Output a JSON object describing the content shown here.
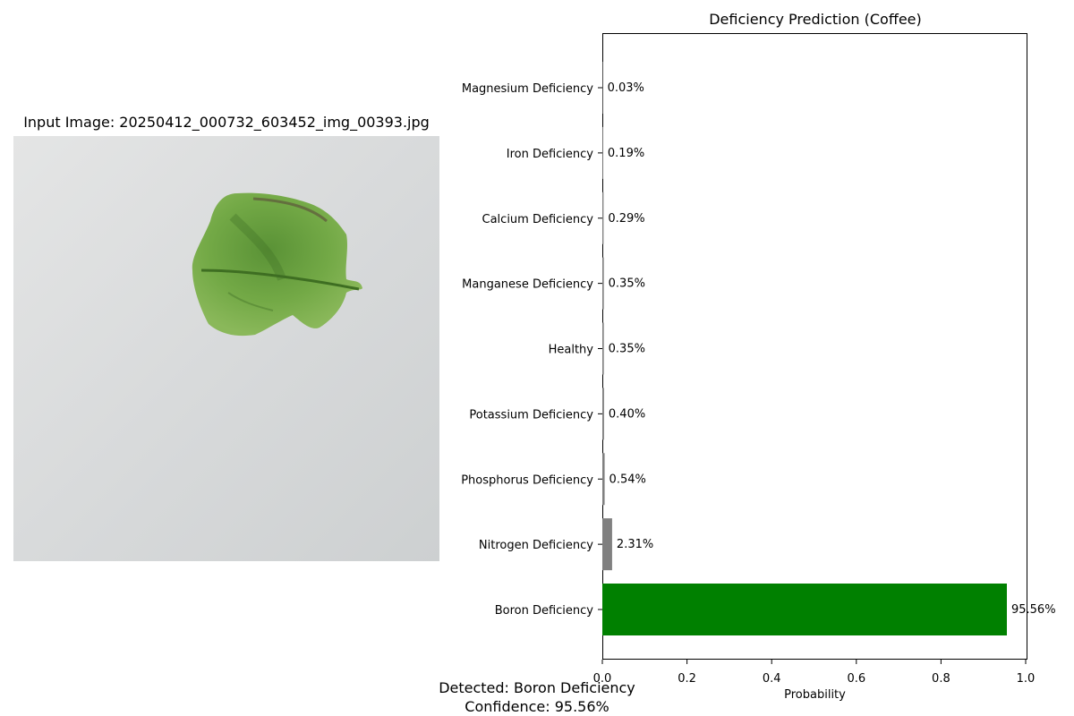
{
  "left_panel": {
    "title": "Input Image: 20250412_000732_603452_img_00393.jpg",
    "image_content": "green leaf on light grey background"
  },
  "chart_data": {
    "type": "bar",
    "orientation": "horizontal",
    "title": "Deficiency Prediction (Coffee)",
    "xlabel": "Probability",
    "ylabel": "",
    "xlim": [
      0,
      1
    ],
    "xticks": [
      0.0,
      0.2,
      0.4,
      0.6,
      0.8,
      1.0
    ],
    "xtick_labels": [
      "0.0",
      "0.2",
      "0.4",
      "0.6",
      "0.8",
      "1.0"
    ],
    "grid": false,
    "categories": [
      "Magnesium Deficiency",
      "Iron Deficiency",
      "Calcium Deficiency",
      "Manganese Deficiency",
      "Healthy",
      "Potassium Deficiency",
      "Phosphorus Deficiency",
      "Nitrogen Deficiency",
      "Boron Deficiency"
    ],
    "values": [
      0.0003,
      0.0019,
      0.0029,
      0.0035,
      0.0035,
      0.004,
      0.0054,
      0.0231,
      0.9556
    ],
    "value_labels": [
      "0.03%",
      "0.19%",
      "0.29%",
      "0.35%",
      "0.35%",
      "0.40%",
      "0.54%",
      "2.31%",
      "95.56%"
    ],
    "colors": [
      "#808080",
      "#808080",
      "#808080",
      "#808080",
      "#808080",
      "#808080",
      "#808080",
      "#808080",
      "#008000"
    ]
  },
  "result": {
    "detected": "Detected: Boron Deficiency",
    "confidence": "Confidence: 95.56%"
  }
}
